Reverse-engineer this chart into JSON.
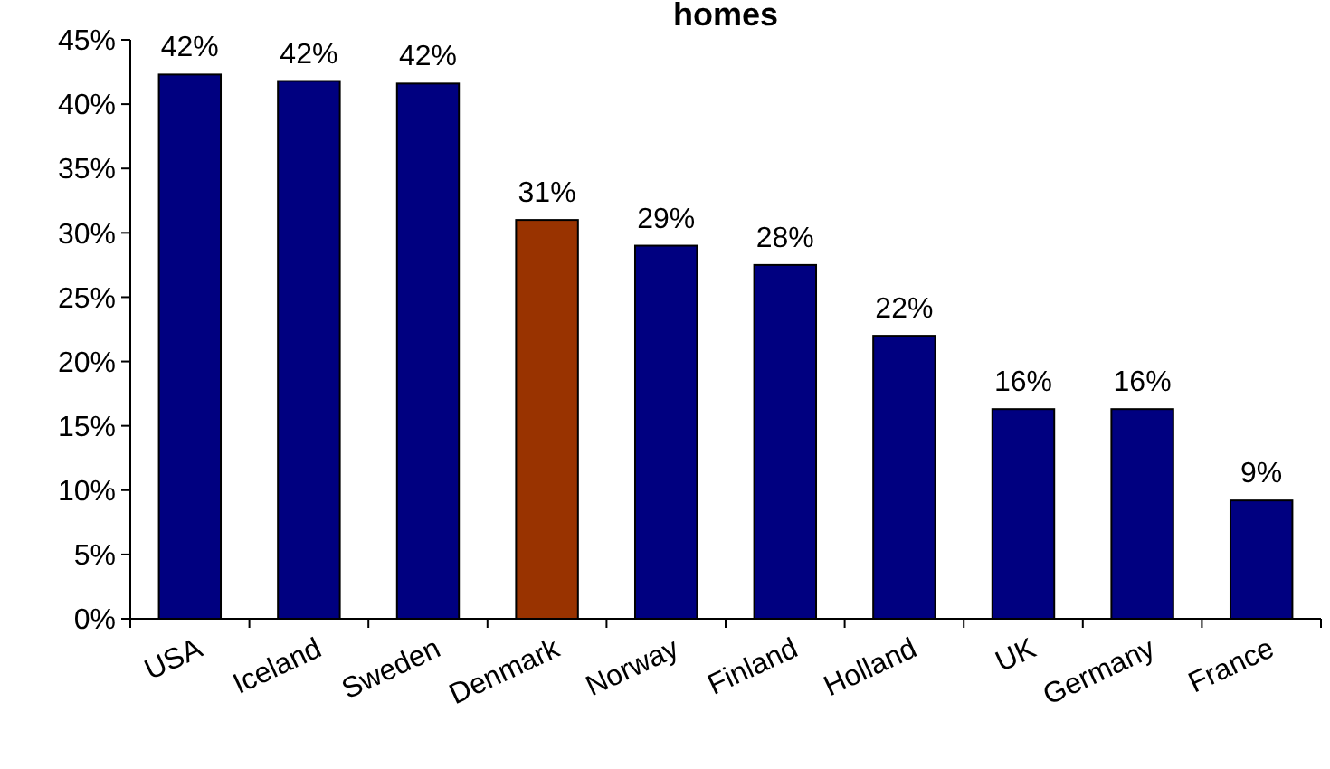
{
  "chart_data": {
    "type": "bar",
    "title": "homes",
    "categories": [
      "USA",
      "Iceland",
      "Sweden",
      "Denmark",
      "Norway",
      "Finland",
      "Holland",
      "UK",
      "Germany",
      "France"
    ],
    "values": [
      42.3,
      41.8,
      41.6,
      31,
      29,
      27.5,
      22,
      16.3,
      16.3,
      9.2
    ],
    "value_labels": [
      "42%",
      "42%",
      "42%",
      "31%",
      "29%",
      "28%",
      "22%",
      "16%",
      "16%",
      "9%"
    ],
    "colors": [
      "#000080",
      "#000080",
      "#000080",
      "#993300",
      "#000080",
      "#000080",
      "#000080",
      "#000080",
      "#000080",
      "#000080"
    ],
    "ylim": [
      0,
      45
    ],
    "yticks": [
      {
        "value": 0,
        "label": "0%"
      },
      {
        "value": 5,
        "label": "5%"
      },
      {
        "value": 10,
        "label": "10%"
      },
      {
        "value": 15,
        "label": "15%"
      },
      {
        "value": 20,
        "label": "20%"
      },
      {
        "value": 25,
        "label": "25%"
      },
      {
        "value": 30,
        "label": "30%"
      },
      {
        "value": 35,
        "label": "35%"
      },
      {
        "value": 40,
        "label": "40%"
      },
      {
        "value": 45,
        "label": "45%"
      }
    ],
    "grid": false
  }
}
